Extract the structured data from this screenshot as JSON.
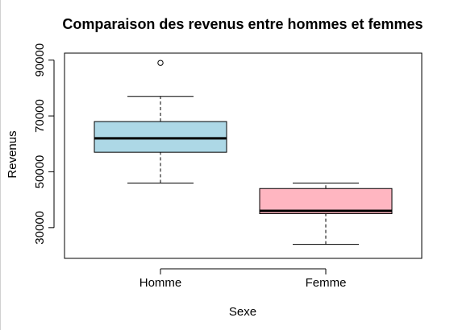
{
  "chart_data": {
    "type": "boxplot",
    "title": "Comparaison des revenus entre hommes et femmes",
    "xlabel": "Sexe",
    "ylabel": "Revenus",
    "ylim": [
      19000,
      92500
    ],
    "yticks": [
      30000,
      50000,
      70000,
      90000
    ],
    "ytick_labels": [
      "30000",
      "50000",
      "70000",
      "90000"
    ],
    "grid": false,
    "legend": "none",
    "categories": [
      "Homme",
      "Femme"
    ],
    "boxes": [
      {
        "name": "Homme",
        "color": "#add8e6",
        "whisker_low": 46000,
        "q1": 57000,
        "median": 62000,
        "q3": 68000,
        "whisker_high": 77000,
        "outliers": [
          89000
        ]
      },
      {
        "name": "Femme",
        "color": "#ffb6c1",
        "whisker_low": 24000,
        "q1": 35000,
        "median": 36000,
        "q3": 44000,
        "whisker_high": 46000,
        "outliers": []
      }
    ]
  }
}
